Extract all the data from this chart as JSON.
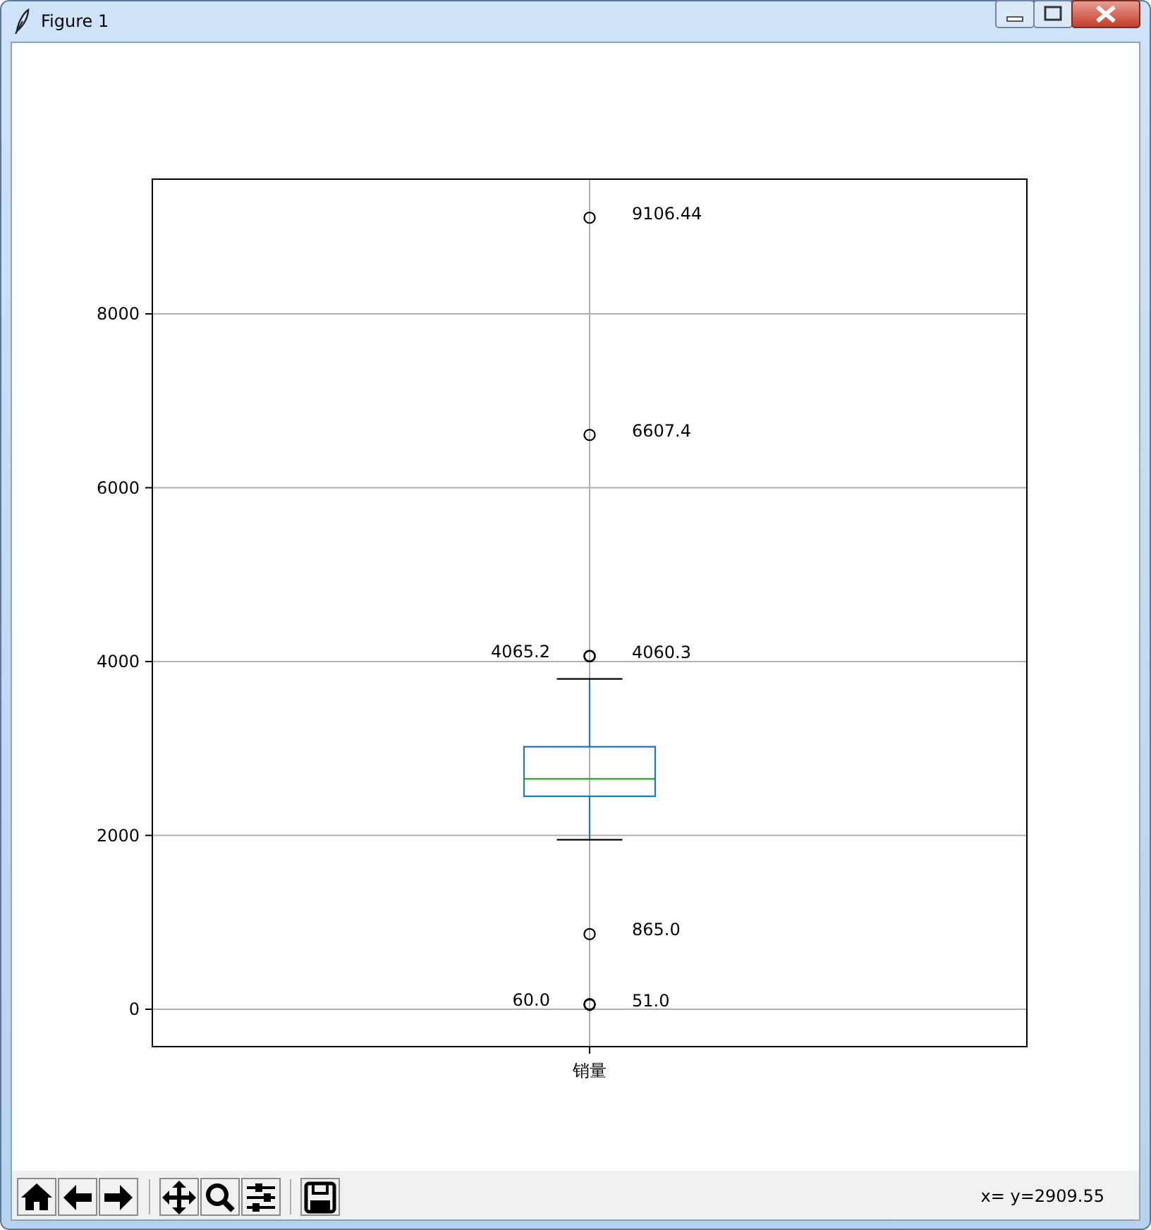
{
  "chart_data": {
    "type": "box",
    "categories": [
      "销量"
    ],
    "series": [
      {
        "color": "#1f77b4",
        "boxes": [
          {
            "low": 1950,
            "q1": 2450,
            "median": 2650,
            "q3": 3020,
            "high": 3800,
            "outliers": [
              9106.44,
              6607.4,
              4065.2,
              4060.3,
              865.0,
              60.0,
              51.0
            ]
          }
        ]
      }
    ],
    "ylim": [
      -430,
      9550
    ],
    "yticks": [
      0,
      2000,
      4000,
      6000,
      8000
    ],
    "grid": true,
    "marker": "circle",
    "annotations": [
      "Figure 1",
      "x= y=2909.55",
      "9106.44",
      "6607.4",
      "4065.2",
      "4060.3",
      "865.0",
      "60.0",
      "51.0"
    ]
  }
}
